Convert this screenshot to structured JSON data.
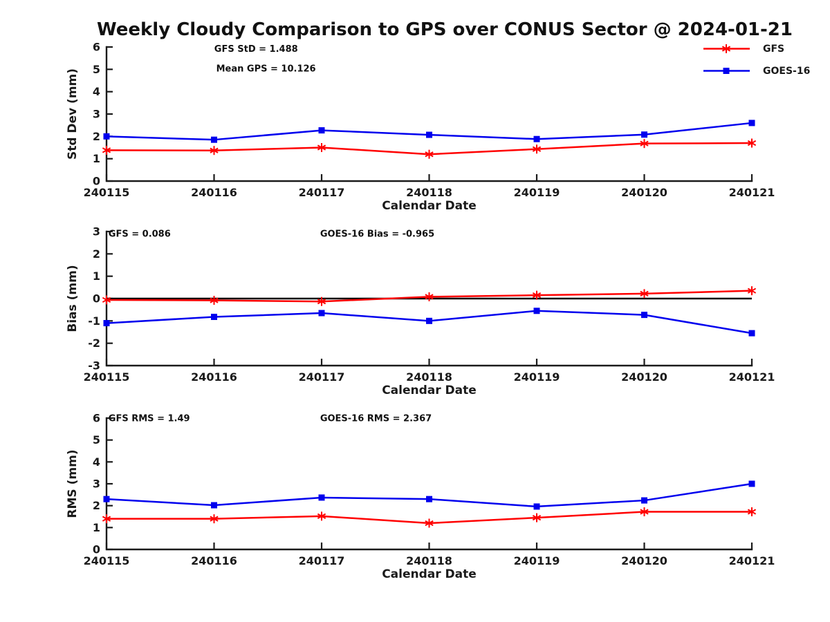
{
  "title": "Weekly Cloudy Comparison to GPS over CONUS Sector @ 2024-01-21",
  "colors": {
    "gfs": "#ff0000",
    "goes16": "#0000ee",
    "axis": "#1a1a1a",
    "zero_line": "#000000",
    "background": "#ffffff"
  },
  "legend": {
    "items": [
      {
        "label": "GFS",
        "color": "#ff0000",
        "marker": "asterisk"
      },
      {
        "label": "GOES-16",
        "color": "#0000ee",
        "marker": "square"
      }
    ]
  },
  "chart_data": [
    {
      "name": "std-dev",
      "type": "line",
      "title": "",
      "xlabel": "Calendar Date",
      "ylabel": "Std Dev (mm)",
      "ylim": [
        0,
        6
      ],
      "yticks": [
        0,
        1,
        2,
        3,
        4,
        5,
        6
      ],
      "grid": false,
      "categories": [
        "240115",
        "240116",
        "240117",
        "240118",
        "240119",
        "240120",
        "240121"
      ],
      "series": [
        {
          "name": "GFS",
          "color": "#ff0000",
          "marker": "asterisk",
          "values": [
            1.38,
            1.37,
            1.5,
            1.2,
            1.43,
            1.68,
            1.7
          ]
        },
        {
          "name": "GOES-16",
          "color": "#0000ee",
          "marker": "square",
          "values": [
            2.0,
            1.85,
            2.27,
            2.07,
            1.88,
            2.08,
            2.6
          ]
        }
      ],
      "annotations": [
        {
          "text": "GFS StD = 1.488",
          "xf": 0.167,
          "yf": 0.012
        },
        {
          "text": "Mean GPS = 10.126",
          "xf": 0.17,
          "yf": 0.16
        }
      ],
      "zero_line": false
    },
    {
      "name": "bias",
      "type": "line",
      "title": "",
      "xlabel": "Calendar Date",
      "ylabel": "Bias (mm)",
      "ylim": [
        -3,
        3
      ],
      "yticks": [
        -3,
        -2,
        -1,
        0,
        1,
        2,
        3
      ],
      "grid": false,
      "categories": [
        "240115",
        "240116",
        "240117",
        "240118",
        "240119",
        "240120",
        "240121"
      ],
      "series": [
        {
          "name": "GFS",
          "color": "#ff0000",
          "marker": "asterisk",
          "values": [
            -0.06,
            -0.08,
            -0.13,
            0.08,
            0.15,
            0.22,
            0.35
          ]
        },
        {
          "name": "GOES-16",
          "color": "#0000ee",
          "marker": "square",
          "values": [
            -1.1,
            -0.82,
            -0.65,
            -1.0,
            -0.55,
            -0.73,
            -1.55
          ]
        }
      ],
      "annotations": [
        {
          "text": "GFS = 0.086",
          "xf": 0.003,
          "yf": 0.016
        },
        {
          "text": "GOES-16 Bias  = -0.965",
          "xf": 0.331,
          "yf": 0.016
        }
      ],
      "zero_line": true
    },
    {
      "name": "rms",
      "type": "line",
      "title": "",
      "xlabel": "Calendar Date",
      "ylabel": "RMS (mm)",
      "ylim": [
        0,
        6
      ],
      "yticks": [
        0,
        1,
        2,
        3,
        4,
        5,
        6
      ],
      "grid": false,
      "categories": [
        "240115",
        "240116",
        "240117",
        "240118",
        "240119",
        "240120",
        "240121"
      ],
      "series": [
        {
          "name": "GFS",
          "color": "#ff0000",
          "marker": "asterisk",
          "values": [
            1.4,
            1.4,
            1.52,
            1.2,
            1.45,
            1.72,
            1.72
          ]
        },
        {
          "name": "GOES-16",
          "color": "#0000ee",
          "marker": "square",
          "values": [
            2.3,
            2.02,
            2.37,
            2.3,
            1.96,
            2.24,
            3.0
          ]
        }
      ],
      "annotations": [
        {
          "text": "GFS RMS = 1.49",
          "xf": 0.003,
          "yf": 0.0
        },
        {
          "text": "GOES-16 RMS = 2.367",
          "xf": 0.331,
          "yf": 0.0
        }
      ],
      "zero_line": false
    }
  ]
}
